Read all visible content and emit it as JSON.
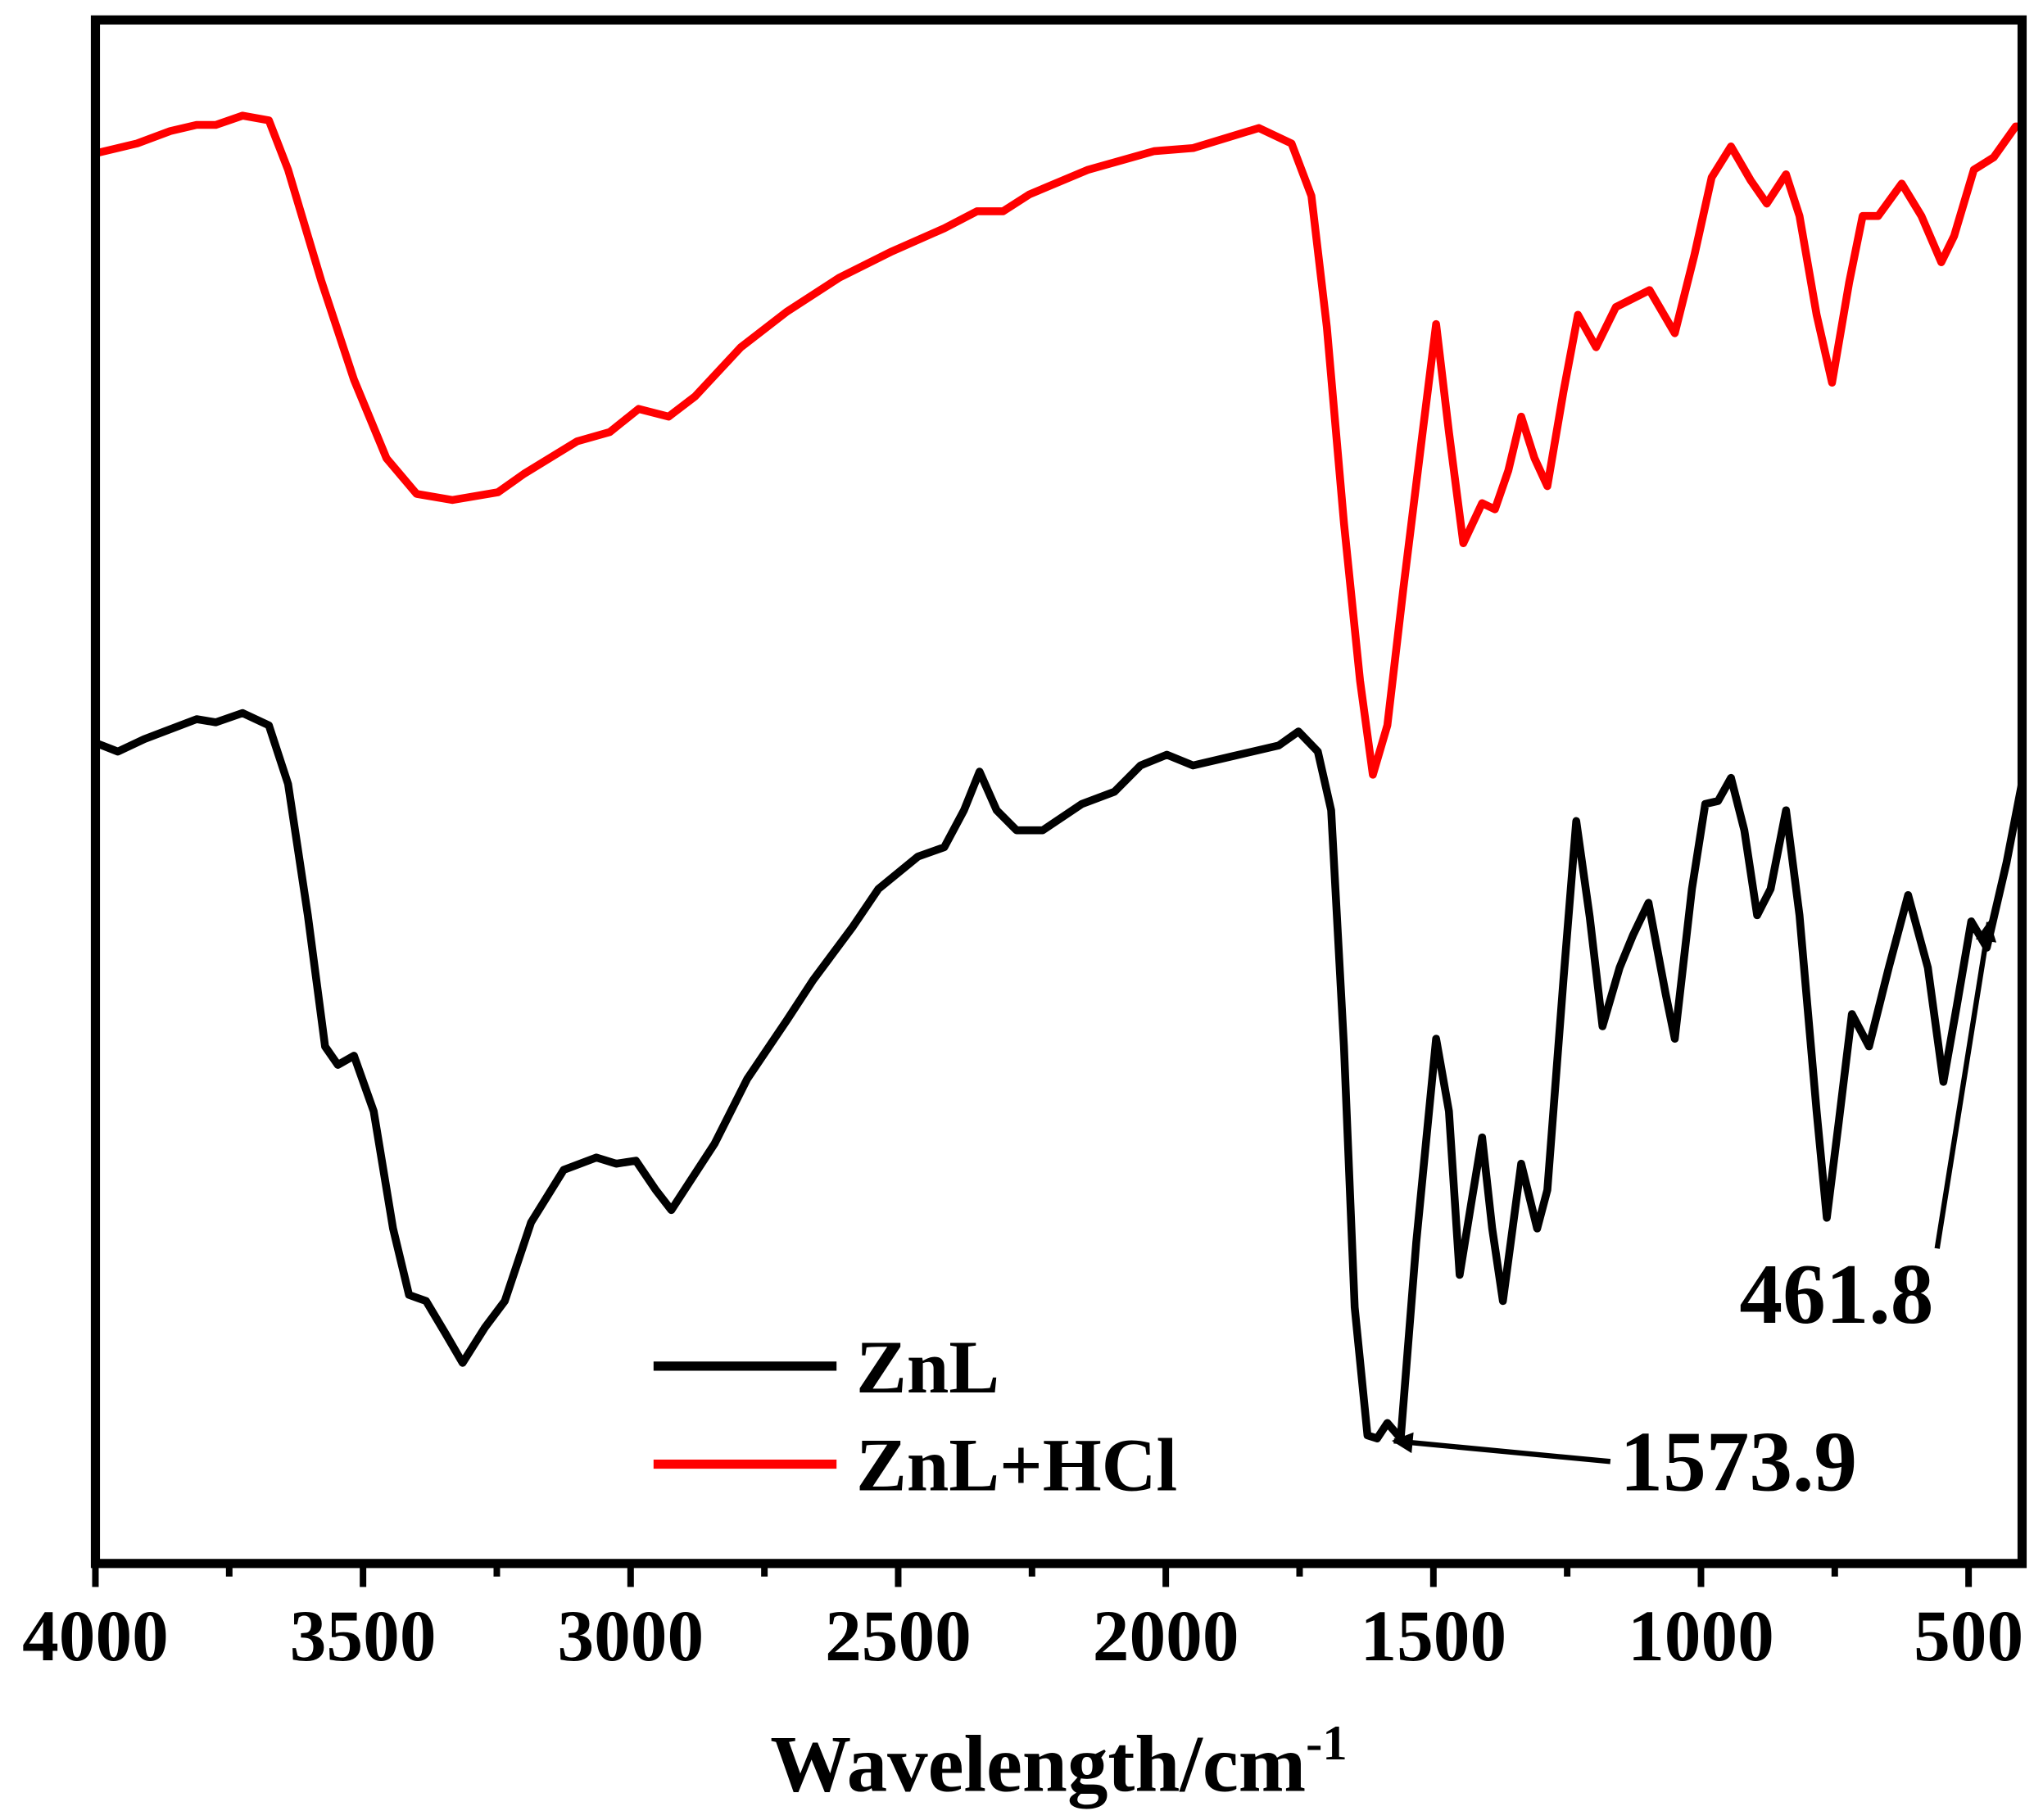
{
  "chart_data": {
    "type": "line",
    "x_label": {
      "text": "Wavelength/cm",
      "superscript": "-1"
    },
    "xlim": [
      4000,
      400
    ],
    "ylim": [
      0,
      100
    ],
    "xticks": [
      4000,
      3500,
      3000,
      2500,
      2000,
      1500,
      1000,
      500
    ],
    "xminor_ticks": [
      3750,
      3250,
      2750,
      2250,
      1750,
      1250,
      750
    ],
    "legend": "lower center",
    "series": [
      {
        "name": "ZnL",
        "color": "#000000",
        "x": [
          3995,
          3958,
          3909,
          3811,
          3775,
          3725,
          3676,
          3640,
          3603,
          3571,
          3547,
          3517,
          3480,
          3444,
          3414,
          3382,
          3346,
          3314,
          3272,
          3235,
          3186,
          3125,
          3064,
          3027,
          2990,
          2953,
          2924,
          2892,
          2843,
          2782,
          2708,
          2659,
          2586,
          2537,
          2463,
          2414,
          2377,
          2348,
          2316,
          2279,
          2230,
          2157,
          2096,
          2047,
          1998,
          1949,
          1875,
          1789,
          1752,
          1716,
          1691,
          1667,
          1647,
          1623,
          1605,
          1586,
          1561,
          1532,
          1495,
          1471,
          1451,
          1429,
          1409,
          1390,
          1370,
          1336,
          1306,
          1287,
          1257,
          1233,
          1208,
          1184,
          1152,
          1127,
          1098,
          1066,
          1049,
          1017,
          992,
          968,
          944,
          919,
          895,
          870,
          841,
          816,
          784,
          765,
          743,
          718,
          686,
          649,
          613,
          576,
          547,
          522,
          495,
          466,
          429,
          400
        ],
        "values": [
          53.1,
          52.6,
          53.4,
          54.7,
          54.5,
          55.1,
          54.3,
          50.5,
          42.0,
          33.5,
          32.3,
          32.9,
          29.3,
          21.7,
          17.4,
          17.0,
          14.9,
          13.0,
          15.3,
          17.0,
          22.1,
          25.5,
          26.3,
          25.9,
          26.1,
          24.2,
          22.9,
          24.6,
          27.2,
          31.4,
          35.2,
          37.8,
          41.2,
          43.7,
          45.8,
          46.4,
          48.8,
          51.3,
          48.8,
          47.5,
          47.5,
          49.2,
          50.0,
          51.7,
          52.4,
          51.7,
          52.3,
          53.0,
          53.9,
          52.6,
          48.8,
          33.5,
          16.6,
          8.3,
          8.1,
          9.1,
          8.1,
          20.8,
          34.0,
          29.3,
          18.7,
          23.4,
          27.6,
          21.7,
          17.0,
          25.9,
          21.7,
          24.2,
          37.8,
          48.1,
          41.9,
          34.8,
          38.6,
          40.7,
          42.8,
          36.9,
          34.0,
          43.7,
          49.2,
          49.4,
          50.9,
          47.5,
          42.0,
          43.7,
          48.8,
          42.0,
          29.3,
          22.4,
          28.5,
          35.6,
          33.5,
          38.6,
          43.3,
          38.6,
          31.2,
          36.1,
          41.6,
          39.9,
          45.4,
          50.6
        ]
      },
      {
        "name": "ZnL+HCl",
        "color": "#ff0000",
        "x": [
          3995,
          3922,
          3860,
          3811,
          3775,
          3725,
          3676,
          3640,
          3578,
          3517,
          3456,
          3400,
          3333,
          3248,
          3199,
          3100,
          3039,
          2985,
          2929,
          2880,
          2794,
          2708,
          2610,
          2512,
          2414,
          2353,
          2304,
          2255,
          2145,
          2022,
          1949,
          1826,
          1765,
          1728,
          1699,
          1667,
          1637,
          1613,
          1586,
          1556,
          1520,
          1495,
          1471,
          1444,
          1409,
          1385,
          1360,
          1336,
          1311,
          1287,
          1257,
          1230,
          1196,
          1159,
          1096,
          1049,
          1012,
          980,
          944,
          907,
          877,
          841,
          816,
          784,
          755,
          723,
          698,
          669,
          625,
          588,
          551,
          527,
          490,
          453,
          412,
          400
        ],
        "values": [
          91.4,
          92.0,
          92.8,
          93.2,
          93.2,
          93.8,
          93.5,
          90.3,
          83.1,
          76.7,
          71.6,
          69.3,
          68.9,
          69.4,
          70.6,
          72.7,
          73.3,
          74.8,
          74.3,
          75.6,
          78.8,
          81.1,
          83.3,
          85.0,
          86.5,
          87.6,
          87.6,
          88.7,
          90.3,
          91.5,
          91.7,
          93.0,
          92.0,
          88.6,
          80.1,
          67.4,
          57.2,
          51.1,
          54.3,
          63.2,
          73.3,
          80.3,
          73.3,
          66.1,
          68.7,
          68.3,
          70.8,
          74.3,
          71.6,
          69.8,
          75.9,
          80.9,
          78.8,
          81.4,
          82.5,
          79.7,
          84.8,
          89.8,
          91.8,
          89.6,
          88.1,
          90.0,
          87.3,
          80.9,
          76.5,
          83.0,
          87.3,
          87.3,
          89.4,
          87.3,
          84.3,
          86.0,
          90.3,
          91.1,
          93.1,
          93.1
        ]
      }
    ],
    "annotations": [
      {
        "label": "1573.9",
        "x": 1573.9
      },
      {
        "label": "461.8",
        "x": 461.8
      }
    ]
  }
}
